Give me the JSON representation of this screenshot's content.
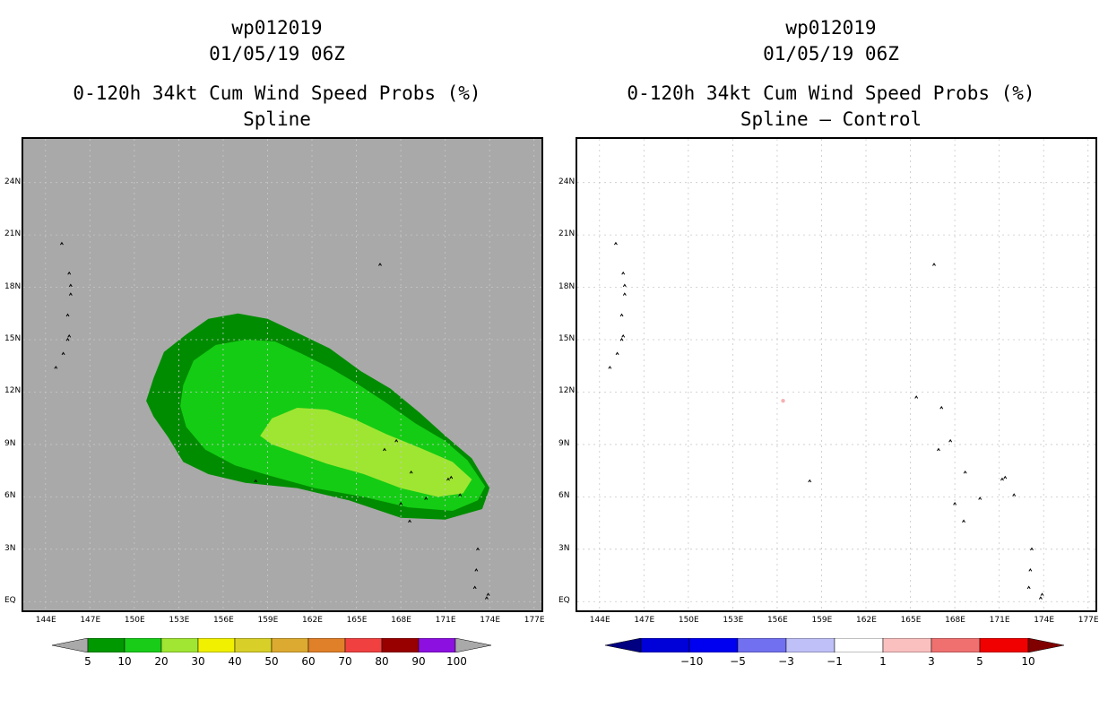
{
  "chart_data": [
    {
      "type": "heatmap",
      "storm_id": "wp012019",
      "datetime": "01/05/19 06Z",
      "title": "0-120h 34kt Cum Wind Speed Probs (%)",
      "subtitle": "Spline",
      "background_color": "#a9a9a9",
      "x_ticks": [
        "144E",
        "147E",
        "150E",
        "153E",
        "156E",
        "159E",
        "162E",
        "165E",
        "168E",
        "171E",
        "174E",
        "177E"
      ],
      "y_ticks": [
        "EQ",
        "3N",
        "6N",
        "9N",
        "12N",
        "15N",
        "18N",
        "21N",
        "24N"
      ],
      "lon_range": [
        142.5,
        177.5
      ],
      "lat_range": [
        -0.5,
        26.5
      ],
      "grid": true,
      "colorbar": {
        "labels": [
          "5",
          "10",
          "20",
          "30",
          "40",
          "50",
          "60",
          "70",
          "80",
          "90",
          "100"
        ],
        "colors": [
          "#009800",
          "#18cc18",
          "#a0e632",
          "#f0f000",
          "#d8d028",
          "#dcaa30",
          "#e08028",
          "#f04040",
          "#980000",
          "#8c10e0"
        ],
        "extend_color": "#a9a9a9"
      },
      "contours": [
        {
          "level": 5,
          "color": "#008c00",
          "points": [
            [
              150.8,
              11.5
            ],
            [
              151.3,
              12.8
            ],
            [
              152,
              14.3
            ],
            [
              153.5,
              15.3
            ],
            [
              155,
              16.2
            ],
            [
              157,
              16.5
            ],
            [
              159,
              16.2
            ],
            [
              161,
              15.4
            ],
            [
              163.2,
              14.5
            ],
            [
              165.3,
              13.2
            ],
            [
              167.3,
              12.2
            ],
            [
              169.3,
              10.8
            ],
            [
              171,
              9.5
            ],
            [
              172.8,
              8.2
            ],
            [
              174,
              6.5
            ],
            [
              173.5,
              5.3
            ],
            [
              171,
              4.7
            ],
            [
              168,
              4.8
            ],
            [
              164.5,
              5.8
            ],
            [
              161,
              6.5
            ],
            [
              157.5,
              6.8
            ],
            [
              155,
              7.3
            ],
            [
              153.3,
              8
            ],
            [
              152.3,
              9.4
            ],
            [
              151.3,
              10.6
            ]
          ]
        },
        {
          "level": 10,
          "color": "#14cc14",
          "points": [
            [
              153.3,
              12.4
            ],
            [
              154,
              13.8
            ],
            [
              155.5,
              14.7
            ],
            [
              157.5,
              15
            ],
            [
              159.5,
              14.9
            ],
            [
              161.3,
              14.2
            ],
            [
              163.2,
              13.4
            ],
            [
              165.2,
              12.4
            ],
            [
              167,
              11.4
            ],
            [
              169,
              10.2
            ],
            [
              171,
              9.2
            ],
            [
              172.5,
              8.1
            ],
            [
              173.7,
              6.6
            ],
            [
              173.2,
              5.8
            ],
            [
              171.5,
              5.2
            ],
            [
              168.5,
              5.4
            ],
            [
              165.5,
              6
            ],
            [
              162.2,
              6.5
            ],
            [
              159.2,
              7.2
            ],
            [
              156.8,
              7.8
            ],
            [
              154.8,
              8.7
            ],
            [
              153.5,
              10
            ],
            [
              153.1,
              11.2
            ]
          ]
        },
        {
          "level": 20,
          "color": "#9fe632",
          "points": [
            [
              158.5,
              9.5
            ],
            [
              159.3,
              10.5
            ],
            [
              161,
              11.1
            ],
            [
              163,
              11
            ],
            [
              165,
              10.4
            ],
            [
              167,
              9.6
            ],
            [
              169.3,
              8.8
            ],
            [
              171.5,
              8
            ],
            [
              172.8,
              7
            ],
            [
              172.2,
              6.2
            ],
            [
              170.5,
              6
            ],
            [
              168,
              6.5
            ],
            [
              165.5,
              7.3
            ],
            [
              163,
              7.9
            ],
            [
              161,
              8.5
            ],
            [
              159.3,
              9
            ]
          ]
        }
      ],
      "islands": [
        [
          145.1,
          20.5
        ],
        [
          145.6,
          18.8
        ],
        [
          145.7,
          18.1
        ],
        [
          145.7,
          17.6
        ],
        [
          145.5,
          16.4
        ],
        [
          145.6,
          15.2
        ],
        [
          145.5,
          15
        ],
        [
          145.2,
          14.2
        ],
        [
          144.7,
          13.4
        ],
        [
          166.6,
          19.3
        ],
        [
          158.2,
          6.9
        ],
        [
          171.4,
          7.1
        ],
        [
          171.2,
          7
        ],
        [
          169.7,
          5.9
        ],
        [
          167.7,
          9.2
        ],
        [
          166.9,
          8.7
        ],
        [
          168.7,
          7.4
        ],
        [
          168,
          5.6
        ],
        [
          173,
          0.8
        ],
        [
          173.1,
          1.8
        ],
        [
          173.2,
          3
        ],
        [
          173.8,
          0.2
        ],
        [
          173.9,
          0.4
        ],
        [
          172,
          6.1
        ],
        [
          168.6,
          4.6
        ]
      ]
    },
    {
      "type": "heatmap",
      "storm_id": "wp012019",
      "datetime": "01/05/19 06Z",
      "title": "0-120h 34kt Cum Wind Speed Probs (%)",
      "subtitle": "Spline – Control",
      "background_color": "#ffffff",
      "x_ticks": [
        "144E",
        "147E",
        "150E",
        "153E",
        "156E",
        "159E",
        "162E",
        "165E",
        "168E",
        "171E",
        "174E",
        "177E"
      ],
      "y_ticks": [
        "EQ",
        "3N",
        "6N",
        "9N",
        "12N",
        "15N",
        "18N",
        "21N",
        "24N"
      ],
      "lon_range": [
        142.5,
        177.5
      ],
      "lat_range": [
        -0.5,
        26.5
      ],
      "grid": true,
      "colorbar": {
        "labels": [
          "−10",
          "−5",
          "−3",
          "−1",
          "1",
          "3",
          "5",
          "10"
        ],
        "colors": [
          "#0000d8",
          "#0000f0",
          "#7070f0",
          "#c0c0f8",
          "#ffffff",
          "#fac0c0",
          "#f07070",
          "#f00000"
        ],
        "extend_low_color": "#000080",
        "extend_high_color": "#800000"
      },
      "contours": [],
      "anomaly_marks": [
        [
          156.4,
          11.5
        ]
      ],
      "islands": [
        [
          145.1,
          20.5
        ],
        [
          145.6,
          18.8
        ],
        [
          145.7,
          18.1
        ],
        [
          145.7,
          17.6
        ],
        [
          145.5,
          16.4
        ],
        [
          145.6,
          15.2
        ],
        [
          145.5,
          15
        ],
        [
          145.2,
          14.2
        ],
        [
          144.7,
          13.4
        ],
        [
          166.6,
          19.3
        ],
        [
          158.2,
          6.9
        ],
        [
          171.4,
          7.1
        ],
        [
          171.2,
          7
        ],
        [
          169.7,
          5.9
        ],
        [
          167.7,
          9.2
        ],
        [
          166.9,
          8.7
        ],
        [
          168.7,
          7.4
        ],
        [
          168,
          5.6
        ],
        [
          173,
          0.8
        ],
        [
          173.1,
          1.8
        ],
        [
          173.2,
          3
        ],
        [
          173.8,
          0.2
        ],
        [
          173.9,
          0.4
        ],
        [
          172,
          6.1
        ],
        [
          168.6,
          4.6
        ],
        [
          165.4,
          11.7
        ],
        [
          167.1,
          11.1
        ]
      ]
    }
  ]
}
